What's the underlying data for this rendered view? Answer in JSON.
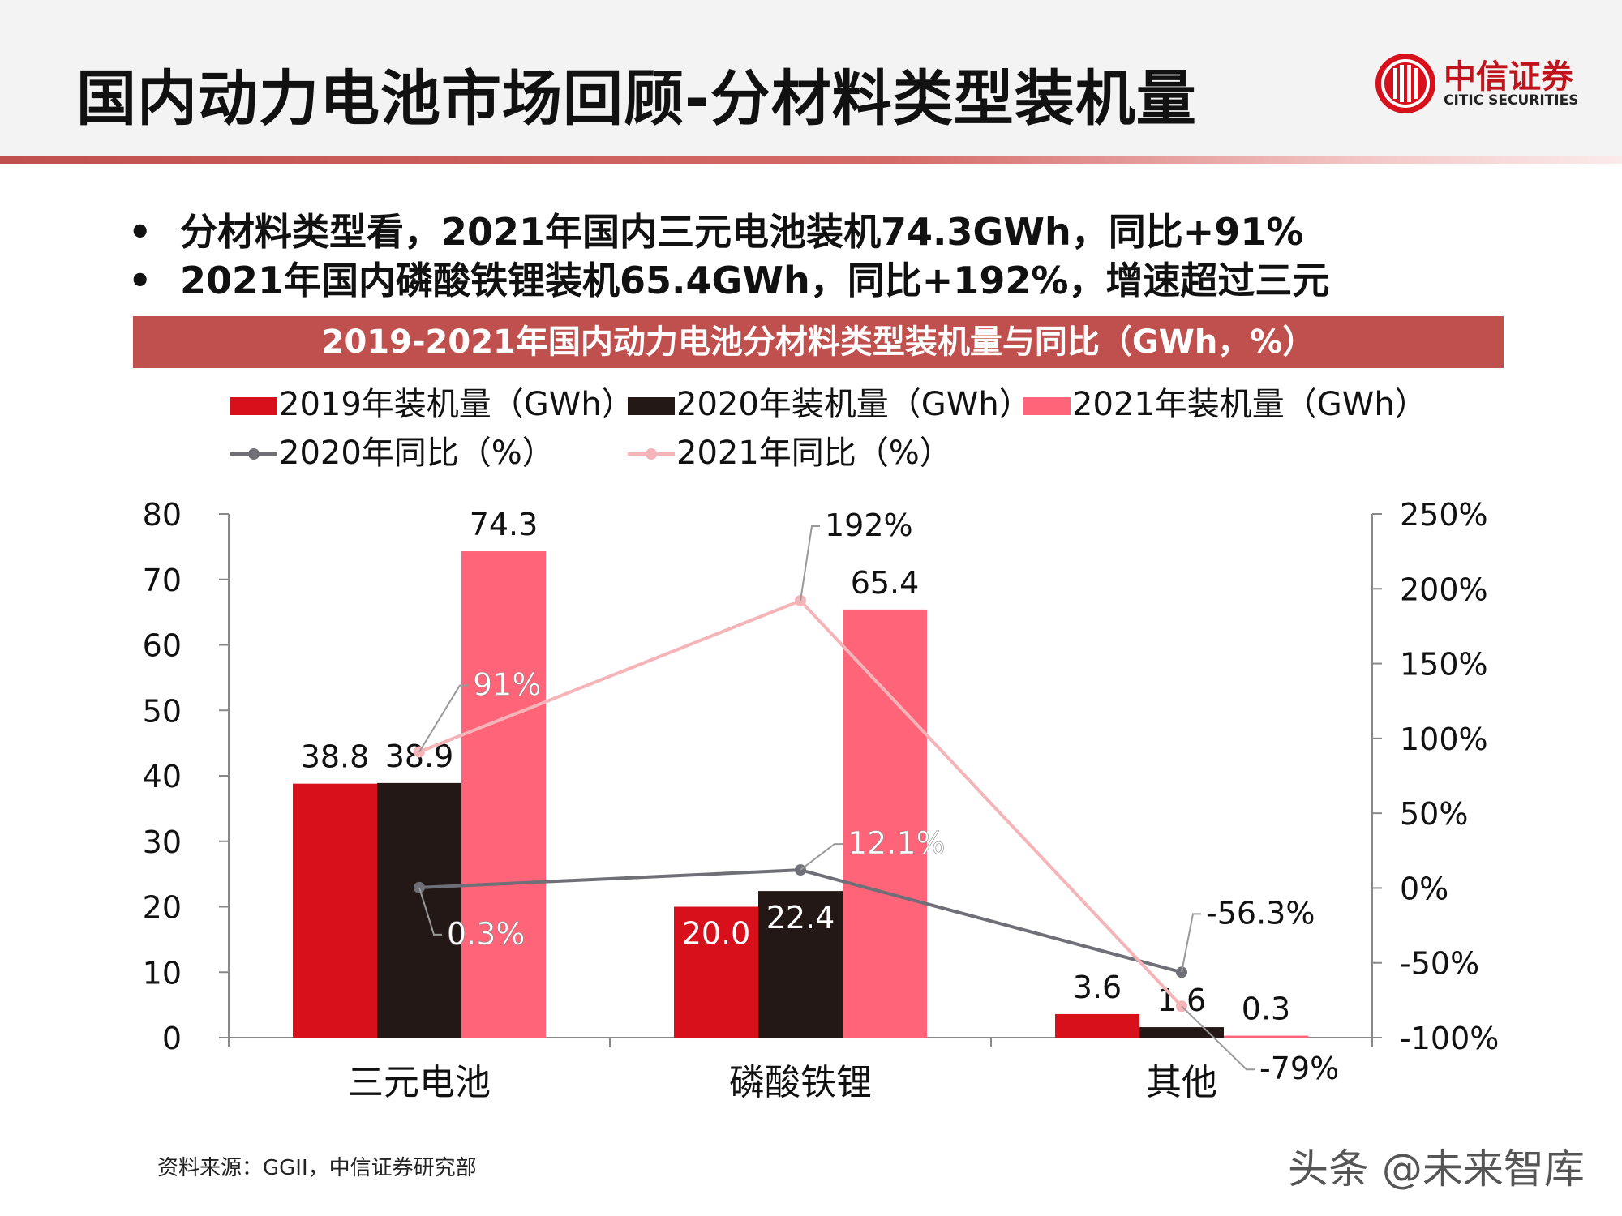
{
  "header": {
    "title": "国内动力电池市场回顾-分材料类型装机量"
  },
  "logo": {
    "name_cn": "中信证券",
    "name_en": "CITIC SECURITIES"
  },
  "bullets": [
    "分材料类型看，2021年国内三元电池装机74.3GWh，同比+91%",
    "2021年国内磷酸铁锂装机65.4GWh，同比+192%，增速超过三元"
  ],
  "bullet_symbol": "•",
  "chart_banner": "2019-2021年国内动力电池分材料类型装机量与同比（GWh，%）",
  "chart_data": {
    "type": "bar",
    "categories": [
      "三元电池",
      "磷酸铁锂",
      "其他"
    ],
    "bar_series": [
      {
        "name": "2019年装机量（GWh）",
        "values": [
          38.8,
          20.0,
          3.6
        ],
        "labels": [
          "38.8",
          "20.0",
          "3.6"
        ],
        "color": "#d7101b"
      },
      {
        "name": "2020年装机量（GWh）",
        "values": [
          38.9,
          22.4,
          1.6
        ],
        "labels": [
          "38.9",
          "22.4",
          "1.6"
        ],
        "color": "#231815"
      },
      {
        "name": "2021年装机量（GWh）",
        "values": [
          74.3,
          65.4,
          0.3
        ],
        "labels": [
          "74.3",
          "65.4",
          "0.3"
        ],
        "color": "#ff6479"
      }
    ],
    "line_series": [
      {
        "name": "2020年同比（%）",
        "values": [
          0.3,
          12.1,
          -56.3
        ],
        "labels": [
          "0.3%",
          "12.1%",
          "-56.3%"
        ],
        "color": "#6f6f78"
      },
      {
        "name": "2021年同比（%）",
        "values": [
          91,
          192,
          -79
        ],
        "labels": [
          "91%",
          "192%",
          "-79%"
        ],
        "color": "#f4b4b8"
      }
    ],
    "y_left": {
      "min": 0,
      "max": 80,
      "ticks": [
        "0",
        "10",
        "20",
        "30",
        "40",
        "50",
        "60",
        "70",
        "80"
      ]
    },
    "y_right": {
      "min": -100,
      "max": 250,
      "ticks": [
        "-100%",
        "-50%",
        "0%",
        "50%",
        "100%",
        "150%",
        "200%",
        "250%"
      ]
    },
    "legend_position": "top",
    "grid": false
  },
  "source_note": "资料来源：GGII，中信证券研究部",
  "watermark": "头条 @未来智库"
}
